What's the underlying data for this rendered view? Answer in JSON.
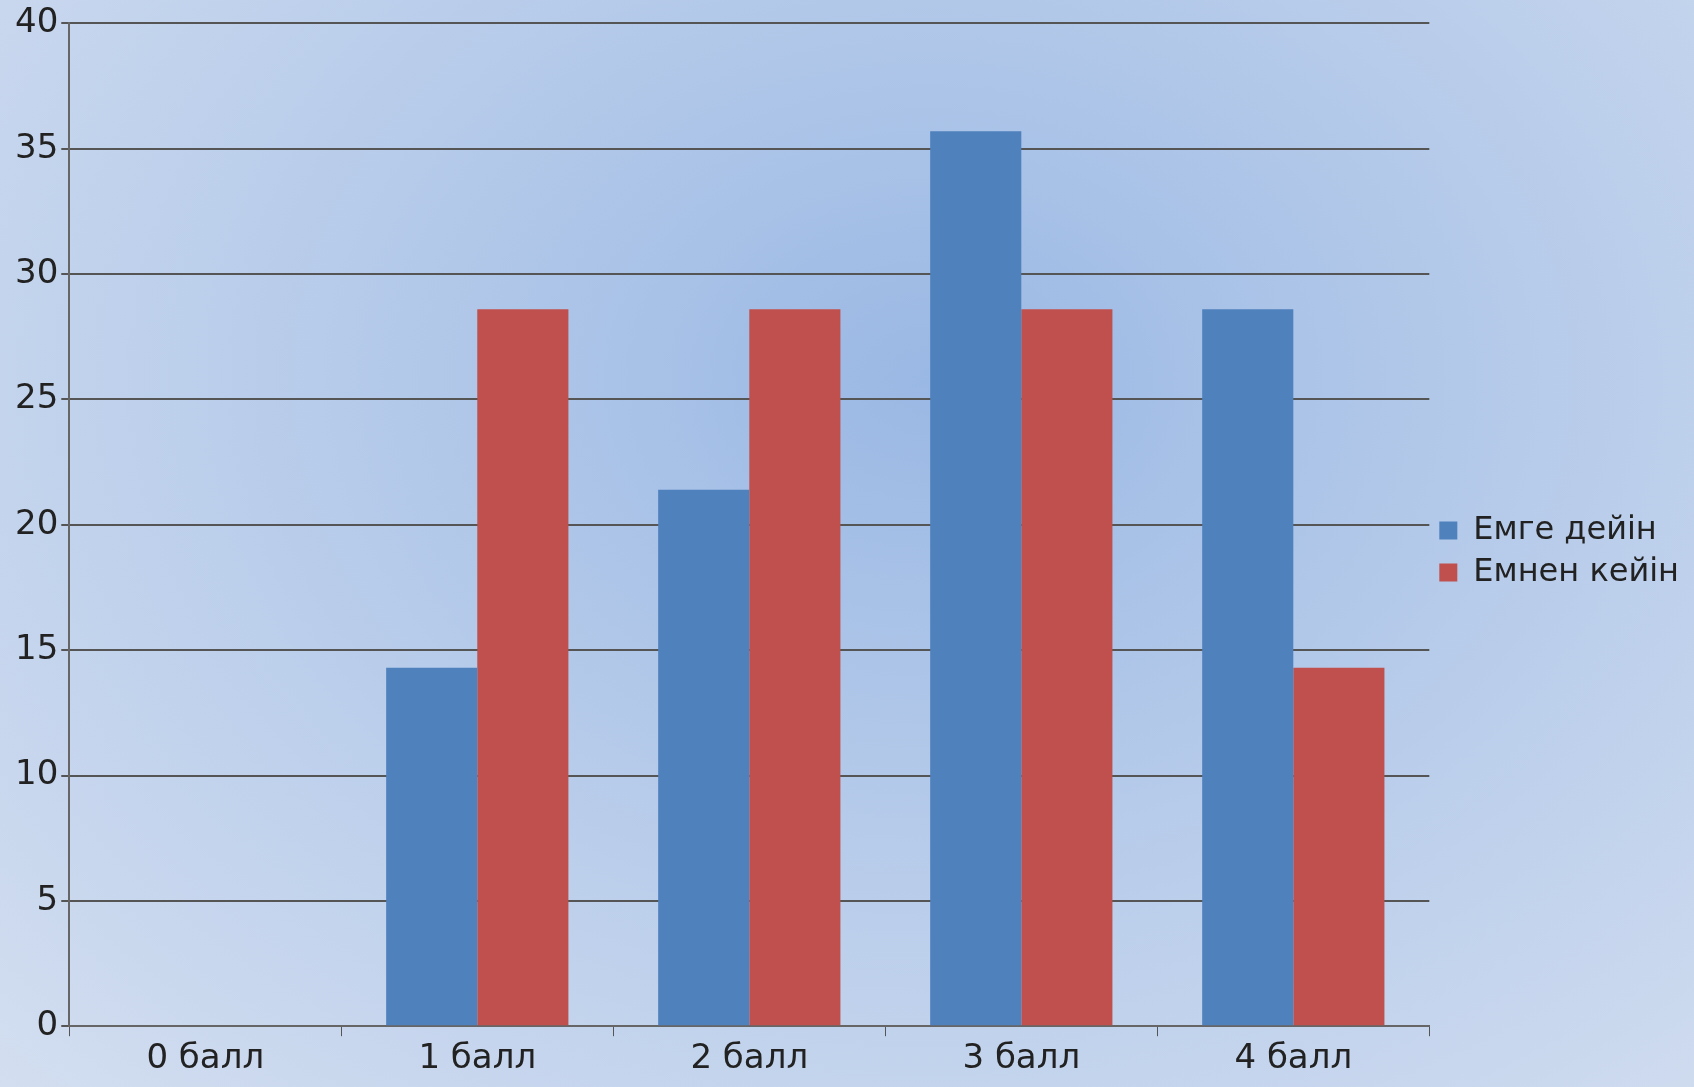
{
  "chart_data": {
    "type": "bar",
    "categories": [
      "0 балл",
      "1 балл",
      "2 балл",
      "3 балл",
      "4 балл"
    ],
    "series": [
      {
        "name": "Емге дейін",
        "color": "#4f81bd",
        "values": [
          0,
          14.3,
          21.4,
          35.7,
          28.6
        ]
      },
      {
        "name": "Емнен кейін",
        "color": "#c0504d",
        "values": [
          0,
          28.6,
          28.6,
          28.6,
          14.3
        ]
      }
    ],
    "ylim": [
      0,
      40
    ],
    "yticks": [
      0,
      5,
      10,
      15,
      20,
      25,
      30,
      35,
      40
    ],
    "grid": "y",
    "legend": "right"
  }
}
